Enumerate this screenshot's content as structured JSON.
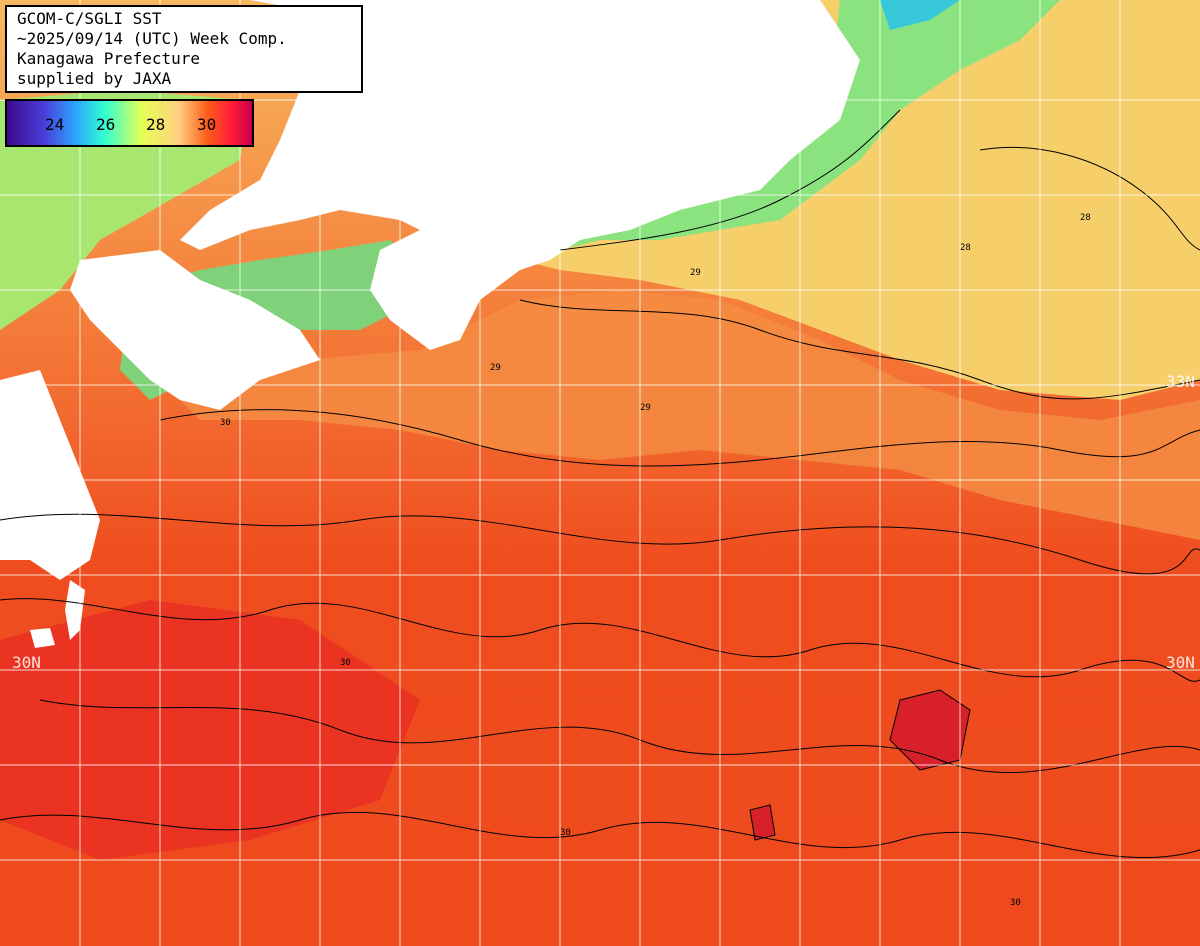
{
  "title_box": {
    "line1": "GCOM-C/SGLI SST",
    "line2": "~2025/09/14 (UTC) Week Comp.",
    "line3": "Kanagawa Prefecture",
    "line4": "supplied by JAXA"
  },
  "legend": {
    "ticks": [
      "24",
      "26",
      "28",
      "30"
    ],
    "colors": [
      "#3d0a8a",
      "#2aa5ff",
      "#33ffd0",
      "#e6ff55",
      "#ffd080",
      "#ff5a1a",
      "#ff1a3a",
      "#c8004a"
    ]
  },
  "grid_labels": {
    "lat_33_right": "33N",
    "lat_30_left": "30N",
    "lat_30_right": "30N"
  },
  "colors": {
    "land": "#ffffff",
    "warm_sea": "#f04a1c",
    "hot_sea": "#e02a1e",
    "mid_sea": "#f9a050",
    "cool_sea": "#f7cf6a",
    "cold_sea": "#7fe07f",
    "coldest_sea": "#36c7d8",
    "grid": "#ffffff",
    "contour": "#000000"
  },
  "contour_labels": [
    "28",
    "29",
    "29",
    "30",
    "30",
    "30",
    "28",
    "29",
    "30"
  ]
}
